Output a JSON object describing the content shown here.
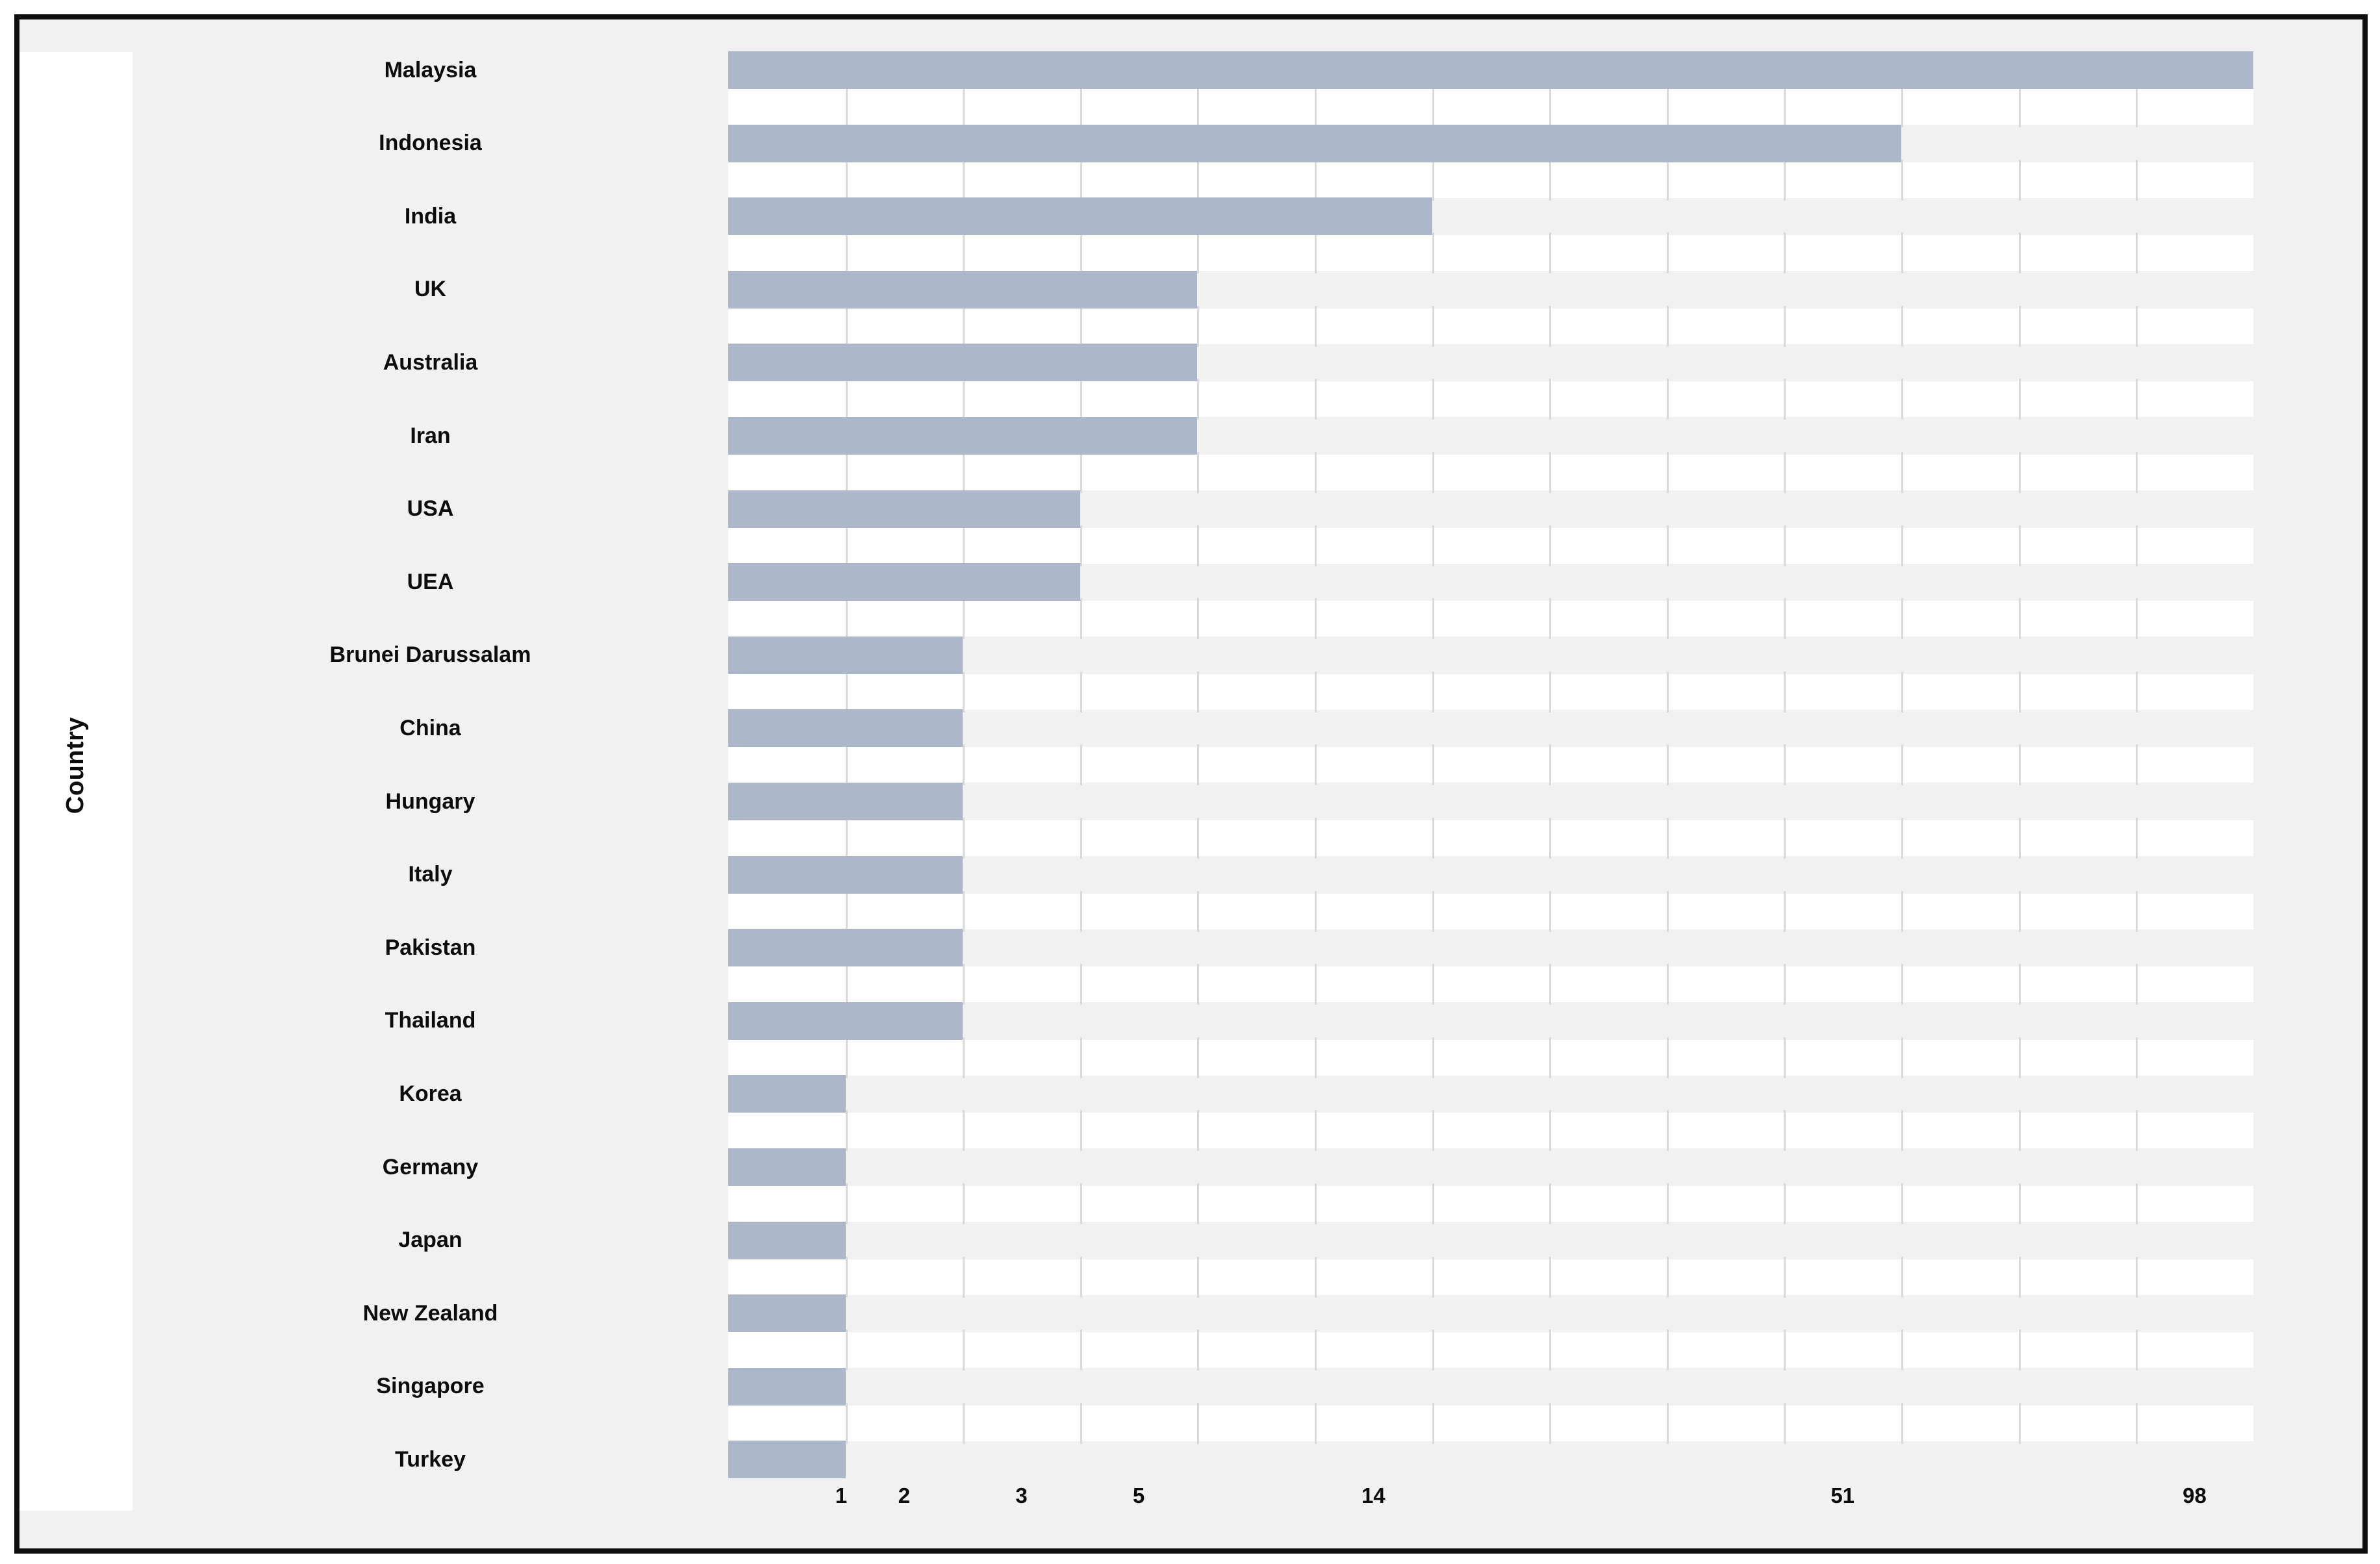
{
  "chart_data": {
    "type": "bar",
    "orientation": "horizontal",
    "title": "",
    "xlabel": "",
    "ylabel": "Country",
    "categories": [
      "Malaysia",
      "Indonesia",
      "India",
      "UK",
      "Australia",
      "Iran",
      "USA",
      "UEA",
      "Brunei Darussalam",
      "China",
      "Hungary",
      "Italy",
      "Pakistan",
      "Thailand",
      "Korea",
      "Germany",
      "Japan",
      "New Zealand",
      "Singapore",
      "Turkey"
    ],
    "values": [
      98,
      51,
      14,
      5,
      5,
      5,
      3,
      3,
      2,
      2,
      2,
      2,
      2,
      2,
      1,
      1,
      1,
      1,
      1,
      1
    ],
    "x_tick_labels": [
      "1",
      "2",
      "3",
      "5",
      "14",
      "51",
      "98"
    ],
    "xlim_values": [
      0,
      98
    ],
    "legend": "none",
    "grid": "vertical-segments-in-gap-bands",
    "colors": {
      "bar": "#acb8c9",
      "canvas": "#f1f1f2",
      "gap_band": "#ffffff",
      "gridline": "#d9d9d9",
      "frame_border": "#0e0e0e",
      "text": "#0c0c0c",
      "axis_title_panel": "#ffffff"
    }
  }
}
